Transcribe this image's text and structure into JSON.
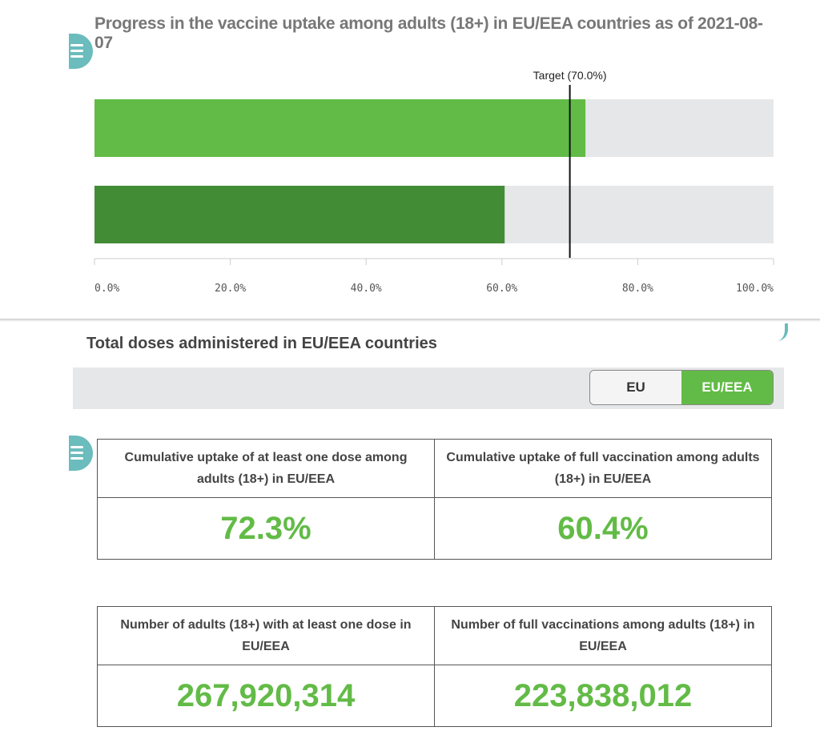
{
  "chart_data": {
    "type": "bar",
    "orientation": "horizontal",
    "title": "Progress in the vaccine uptake among adults (18+) in EU/EEA countries as of 2021-08-07",
    "series": [
      {
        "values": [
          72.3
        ],
        "color": "#62bb46"
      },
      {
        "values": [
          60.4
        ],
        "color": "#438c36"
      }
    ],
    "target": {
      "label": "Target (70.0%)",
      "value": 70
    },
    "xlim": [
      0,
      100
    ],
    "ticks": [
      "0.0%",
      "20.0%",
      "40.0%",
      "60.0%",
      "80.0%",
      "100.0%"
    ],
    "track_color": "#e6e7e8"
  },
  "section": {
    "title": "Total doses administered in EU/EEA countries",
    "toggle": [
      {
        "label": "EU",
        "active": false
      },
      {
        "label": "EU/EEA",
        "active": true
      }
    ]
  },
  "cards": [
    {
      "label": "Cumulative uptake of at least one dose among adults (18+) in EU/EEA",
      "value": "72.3%"
    },
    {
      "label": "Cumulative uptake of full vaccination among adults (18+) in EU/EEA",
      "value": "60.4%"
    },
    {
      "label": "Number of adults (18+) with at least one dose in EU/EEA",
      "value": "267,920,314"
    },
    {
      "label": "Number of full vaccinations among adults (18+) in EU/EEA",
      "value": "223,838,012"
    }
  ],
  "accent": "#62bb46"
}
